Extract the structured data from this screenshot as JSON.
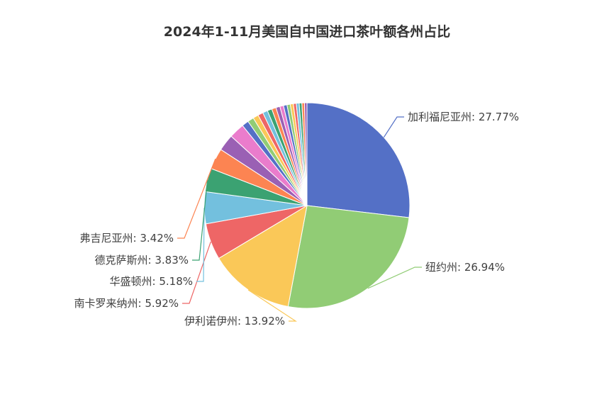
{
  "chart_data": {
    "type": "pie",
    "title": "2024年1-11月美国自中国进口茶叶额各州占比",
    "slices": [
      {
        "name": "加利福尼亚州",
        "value": 27.77,
        "label": "加利福尼亚州: 27.77%",
        "color": "#5470c6",
        "labeled": true
      },
      {
        "name": "纽约州",
        "value": 26.94,
        "label": "纽约州: 26.94%",
        "color": "#91cc75",
        "labeled": true
      },
      {
        "name": "伊利诺伊州",
        "value": 13.92,
        "label": "伊利诺伊州: 13.92%",
        "color": "#fac858",
        "labeled": true
      },
      {
        "name": "南卡罗来纳州",
        "value": 5.92,
        "label": "南卡罗来纳州: 5.92%",
        "color": "#ee6666",
        "labeled": true
      },
      {
        "name": "华盛顿州",
        "value": 5.18,
        "label": "华盛顿州: 5.18%",
        "color": "#73c0de",
        "labeled": true
      },
      {
        "name": "德克萨斯州",
        "value": 3.83,
        "label": "德克萨斯州: 3.83%",
        "color": "#3ba272",
        "labeled": true
      },
      {
        "name": "弗吉尼亚州",
        "value": 3.42,
        "label": "弗吉尼亚州: 3.42%",
        "color": "#fc8452",
        "labeled": true
      },
      {
        "value": 2.7,
        "color": "#9a60b4",
        "labeled": false
      },
      {
        "value": 2.5,
        "color": "#ea7ccc",
        "labeled": false
      },
      {
        "value": 1.1,
        "color": "#5470c6",
        "labeled": false
      },
      {
        "value": 1.0,
        "color": "#91cc75",
        "labeled": false
      },
      {
        "value": 0.9,
        "color": "#fac858",
        "labeled": false
      },
      {
        "value": 0.85,
        "color": "#ee6666",
        "labeled": false
      },
      {
        "value": 0.8,
        "color": "#73c0de",
        "labeled": false
      },
      {
        "value": 0.75,
        "color": "#3ba272",
        "labeled": false
      },
      {
        "value": 0.7,
        "color": "#fc8452",
        "labeled": false
      },
      {
        "value": 0.65,
        "color": "#9a60b4",
        "labeled": false
      },
      {
        "value": 0.6,
        "color": "#ea7ccc",
        "labeled": false
      },
      {
        "value": 0.57,
        "color": "#5470c6",
        "labeled": false
      },
      {
        "value": 0.53,
        "color": "#91cc75",
        "labeled": false
      },
      {
        "value": 0.5,
        "color": "#fac858",
        "labeled": false
      },
      {
        "value": 0.48,
        "color": "#ee6666",
        "labeled": false
      },
      {
        "value": 0.46,
        "color": "#73c0de",
        "labeled": false
      },
      {
        "value": 0.44,
        "color": "#3ba272",
        "labeled": false
      },
      {
        "value": 0.42,
        "color": "#fc8452",
        "labeled": false
      },
      {
        "value": 0.4,
        "color": "#9a60b4",
        "labeled": false
      }
    ]
  }
}
